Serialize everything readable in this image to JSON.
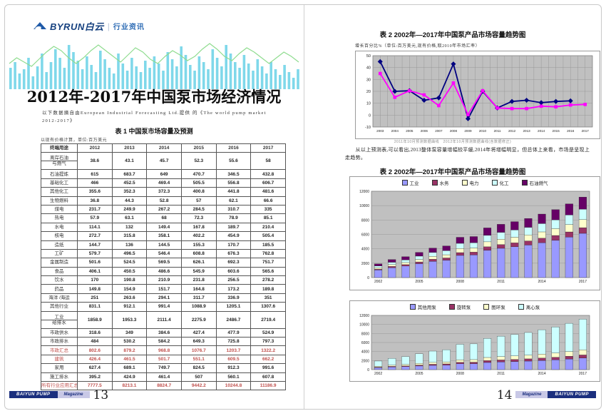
{
  "left_page": {
    "logo": {
      "brand": "BYRUN白云",
      "divider": "|",
      "tagline": "行业资讯"
    },
    "title": "2012年-2017年中国泵市场经济情况",
    "subtitle": "以下数据摘自由European Industrial Forecasting Ltd.提供 的《The world pump market 2012-2017》",
    "table_title": "表 1  中国泵市场容量及预测",
    "table_note": "以现有价格计算，单位:百万美元",
    "table": {
      "columns": [
        "终端用途",
        "2012",
        "2013",
        "2014",
        "2015",
        "2016",
        "2017"
      ],
      "rows": [
        {
          "label": "离岸石油\n与燃气",
          "tall": true,
          "red": false,
          "values": [
            "38.6",
            "43.1",
            "45.7",
            "52.3",
            "55.6",
            "58"
          ]
        },
        {
          "label": "石油提炼",
          "red": false,
          "values": [
            "615",
            "683.7",
            "649",
            "470.7",
            "346.5",
            "432.8"
          ]
        },
        {
          "label": "基础化工",
          "red": false,
          "values": [
            "466",
            "452.5",
            "469.4",
            "505.5",
            "556.8",
            "606.7"
          ]
        },
        {
          "label": "其他化工",
          "red": false,
          "values": [
            "355.6",
            "352.3",
            "372.3",
            "400.8",
            "441.8",
            "481.6"
          ]
        },
        {
          "label": "生物燃料",
          "red": false,
          "values": [
            "36.8",
            "44.3",
            "52.8",
            "57",
            "62.1",
            "66.6"
          ]
        },
        {
          "label": "煤电",
          "red": false,
          "values": [
            "231.7",
            "249.9",
            "267.2",
            "284.5",
            "310.7",
            "335"
          ]
        },
        {
          "label": "热电",
          "red": false,
          "values": [
            "57.9",
            "63.1",
            "68",
            "72.3",
            "78.9",
            "85.1"
          ]
        },
        {
          "label": "水电",
          "red": false,
          "values": [
            "114.1",
            "132",
            "149.4",
            "167.8",
            "189.7",
            "210.4"
          ]
        },
        {
          "label": "核电",
          "red": false,
          "values": [
            "272.7",
            "315.8",
            "358.1",
            "402.2",
            "454.9",
            "505.4"
          ]
        },
        {
          "label": "造纸",
          "red": false,
          "values": [
            "144.7",
            "136",
            "144.5",
            "155.3",
            "170.7",
            "185.5"
          ]
        },
        {
          "label": "工矿",
          "red": false,
          "values": [
            "579.7",
            "496.5",
            "546.4",
            "608.8",
            "676.3",
            "762.8"
          ]
        },
        {
          "label": "金属制造",
          "red": false,
          "values": [
            "501.6",
            "524.5",
            "569.5",
            "626.1",
            "692.3",
            "751.7"
          ]
        },
        {
          "label": "食品",
          "red": false,
          "values": [
            "406.1",
            "450.5",
            "486.6",
            "545.9",
            "603.6",
            "565.6"
          ]
        },
        {
          "label": "饮水",
          "red": false,
          "values": [
            "170",
            "190.8",
            "210.9",
            "231.8",
            "256.5",
            "278.2"
          ]
        },
        {
          "label": "药品",
          "red": false,
          "values": [
            "149.8",
            "154.9",
            "151.7",
            "164.8",
            "173.2",
            "189.8"
          ]
        },
        {
          "label": "海洋 /海运",
          "red": false,
          "values": [
            "251",
            "263.6",
            "294.1",
            "311.7",
            "336.9",
            "351"
          ]
        },
        {
          "label": "其他行业",
          "red": false,
          "values": [
            "831.1",
            "912.1",
            "991.4",
            "1088.9",
            "1205.1",
            "1307.6"
          ]
        },
        {
          "label": "工业\n给排水",
          "tall": true,
          "red": false,
          "values": [
            "1858.9",
            "1953.3",
            "2111.4",
            "2275.9",
            "2486.7",
            "2719.4"
          ]
        },
        {
          "label": "市政供水",
          "red": false,
          "values": [
            "318.6",
            "349",
            "384.6",
            "427.4",
            "477.9",
            "524.9"
          ]
        },
        {
          "label": "市政排水",
          "red": false,
          "values": [
            "484",
            "530.2",
            "584.2",
            "649.3",
            "725.8",
            "797.3"
          ]
        },
        {
          "label": "市政汇总",
          "red": true,
          "values": [
            "802.6",
            "879.2",
            "968.8",
            "1076.7",
            "1203.7",
            "1322.2"
          ]
        },
        {
          "label": "建筑",
          "red": true,
          "values": [
            "426.4",
            "461.5",
            "501.7",
            "551.1",
            "609.5",
            "662.2"
          ]
        },
        {
          "label": "家用",
          "red": false,
          "values": [
            "627.4",
            "689.1",
            "749.7",
            "824.5",
            "912.3",
            "991.6"
          ]
        },
        {
          "label": "施工排水",
          "red": false,
          "values": [
            "395.2",
            "424.9",
            "461.4",
            "507",
            "560.1",
            "607.8"
          ]
        },
        {
          "label": "所有行业应用汇总",
          "red": true,
          "values": [
            "7777.5",
            "8213.1",
            "8824.7",
            "9442.2",
            "10244.8",
            "11186.9"
          ]
        }
      ]
    },
    "footer": {
      "brand": "BAIYUN PUMP",
      "magazine": "Magazine",
      "page": "13"
    },
    "header_art": {
      "bar_color": "#7fd8ea",
      "line_color": "#8fdc8f",
      "bars": [
        30,
        38,
        22,
        28,
        44,
        18,
        32,
        50,
        24,
        38,
        56,
        44,
        30,
        62,
        52,
        40,
        28,
        46,
        34,
        24,
        54,
        42,
        30,
        22,
        50,
        36,
        26,
        44,
        32,
        24,
        40,
        30,
        46,
        36,
        26,
        52,
        42,
        32,
        60,
        48,
        34,
        26,
        46,
        38,
        28,
        56,
        44,
        32,
        62,
        50,
        38,
        30,
        48,
        36,
        26,
        42,
        32,
        22,
        38,
        28,
        20,
        34,
        24,
        16,
        28
      ],
      "line": [
        28,
        36,
        30,
        24,
        34,
        44,
        52,
        46,
        36,
        28,
        36,
        46,
        54,
        46,
        38,
        30,
        40,
        50,
        44,
        34,
        28,
        38,
        46,
        40,
        32,
        38,
        48,
        56,
        48,
        38,
        32,
        42,
        50,
        44,
        36,
        28,
        36,
        44,
        38,
        30
      ]
    }
  },
  "right_page": {
    "chart1_title": "表 2  2002年—2017年中国泵产品市场容量趋势图",
    "chart1_subtitle": "增长百分比%（单位:百万美元,现有价格,取2010年市场汇率）",
    "chart1_caption": "2011年10月预测数据曲线　2012年10月预测数据曲线(含数据修正)",
    "paragraph": "　　从以上预测表,可以看出,2013整体泵容量增幅较平缓,2014年将增幅明显，但总体上来看，市场是呈现上走趋势。",
    "chart2_title": "表 2  2002年—2017年中国泵产品市场容量趋势图",
    "footer": {
      "page": "14",
      "magazine": "Magazine",
      "brand": "BAIYUN PUMP"
    }
  },
  "chart_data": [
    {
      "type": "line",
      "title": "2002年—2017年中国泵产品市场容量趋势图(增长百分比%)",
      "x": [
        "2003",
        "2004",
        "2005",
        "2006",
        "2007",
        "2008",
        "2009",
        "2010",
        "2011",
        "2012",
        "2013",
        "2014",
        "2015",
        "2016",
        "2017"
      ],
      "ylim": [
        -10,
        50
      ],
      "yticks": [
        -10,
        0,
        10,
        20,
        30,
        40,
        50
      ],
      "plot_bg": "#c0c0c0",
      "grid": true,
      "legend_position": "none",
      "series": [
        {
          "name": "2011年10月预测数据曲线",
          "color": "#000080",
          "marker": "diamond",
          "values": [
            45,
            20,
            20.5,
            12.5,
            14.5,
            43,
            -3,
            20,
            6,
            11.5,
            12.5,
            10.5,
            11.5,
            12,
            null
          ]
        },
        {
          "name": "2012年10月预测数据曲线(含数据修正)",
          "color": "#ff00ff",
          "marker": "square",
          "values": [
            35,
            15,
            20.5,
            17,
            8,
            27,
            0.5,
            20.5,
            6,
            5.5,
            5.5,
            7.5,
            7,
            8.5,
            9
          ]
        }
      ]
    },
    {
      "type": "bar",
      "stacked": true,
      "title": "2002年—2017年中国泵产品市场容量趋势图(按应用领域)",
      "categories": [
        "2002",
        "2003",
        "2004",
        "2005",
        "2006",
        "2007",
        "2008",
        "2009",
        "2010",
        "2011",
        "2012",
        "2013",
        "2014",
        "2015",
        "2016",
        "2017"
      ],
      "ylim": [
        0,
        12000
      ],
      "yticks": [
        0,
        2000,
        4000,
        6000,
        8000,
        10000,
        12000
      ],
      "xtick_every": 3,
      "plot_bg": "#c0c0c0",
      "legend_position": "top",
      "series": [
        {
          "name": "工业",
          "color": "#9999ff",
          "values": [
            1050,
            1380,
            1600,
            1930,
            2260,
            2420,
            3080,
            3140,
            3800,
            4070,
            4280,
            4520,
            4850,
            5190,
            5630,
            6150
          ]
        },
        {
          "name": "水务",
          "color": "#993366",
          "values": [
            130,
            175,
            200,
            245,
            285,
            310,
            390,
            400,
            480,
            520,
            545,
            575,
            620,
            660,
            715,
            785
          ]
        },
        {
          "name": "电力",
          "color": "#ffffcc",
          "values": [
            190,
            250,
            290,
            350,
            410,
            440,
            560,
            570,
            690,
            740,
            780,
            820,
            880,
            945,
            1025,
            1120
          ]
        },
        {
          "name": "化工",
          "color": "#ccffff",
          "values": [
            245,
            325,
            375,
            455,
            535,
            570,
            730,
            740,
            895,
            960,
            1010,
            1070,
            1150,
            1230,
            1330,
            1455
          ]
        },
        {
          "name": "石油燃气",
          "color": "#660066",
          "values": [
            285,
            370,
            435,
            520,
            610,
            660,
            840,
            850,
            1035,
            1110,
            1160,
            1230,
            1325,
            1415,
            1545,
            1675
          ]
        }
      ]
    },
    {
      "type": "bar",
      "stacked": true,
      "title": "2002年—2017年中国泵产品市场容量趋势图(按泵类型)",
      "categories": [
        "2002",
        "2003",
        "2004",
        "2005",
        "2006",
        "2007",
        "2008",
        "2009",
        "2010",
        "2011",
        "2012",
        "2013",
        "2014",
        "2015",
        "2016",
        "2017"
      ],
      "ylim": [
        0,
        12000
      ],
      "yticks": [
        0,
        2000,
        4000,
        6000,
        8000,
        10000,
        12000
      ],
      "xtick_every": 3,
      "plot_bg": "#c0c0c0",
      "legend_position": "top",
      "series": [
        {
          "name": "其他用泵",
          "color": "#9999ff",
          "values": [
            435,
            575,
            665,
            805,
            945,
            1010,
            1290,
            1310,
            1585,
            1700,
            1790,
            1890,
            2030,
            2170,
            2355,
            2575
          ]
        },
        {
          "name": "旋转泵",
          "color": "#993366",
          "values": [
            115,
            150,
            175,
            210,
            245,
            265,
            335,
            340,
            415,
            445,
            465,
            495,
            530,
            565,
            615,
            670
          ]
        },
        {
          "name": "图环泵",
          "color": "#ffffcc",
          "values": [
            190,
            250,
            290,
            350,
            410,
            440,
            560,
            570,
            690,
            740,
            780,
            820,
            880,
            945,
            1025,
            1120
          ]
        },
        {
          "name": "离心泵",
          "color": "#ccffff",
          "values": [
            1160,
            1525,
            1770,
            2135,
            2500,
            2685,
            3415,
            3480,
            4210,
            4515,
            4740,
            5010,
            5385,
            5760,
            6250,
            6820
          ]
        }
      ]
    }
  ]
}
